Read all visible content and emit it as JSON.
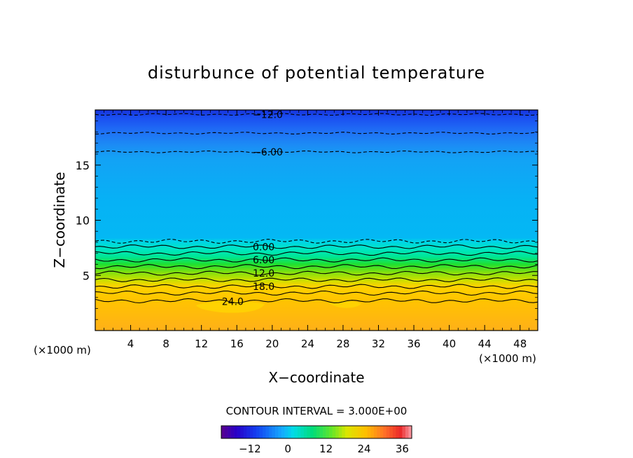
{
  "chart_data": {
    "type": "contour",
    "title": "disturbunce of potential temperature",
    "xlabel": "X−coordinate",
    "ylabel": "Z−coordinate",
    "x_unit_left": "(×1000 m)",
    "x_unit_right": "(×1000 m)",
    "xlim": [
      0,
      50
    ],
    "ylim": [
      0,
      20
    ],
    "x_ticks": [
      4,
      8,
      12,
      16,
      20,
      24,
      28,
      32,
      36,
      40,
      44,
      48
    ],
    "y_ticks": [
      5,
      10,
      15
    ],
    "contour_interval_label": "CONTOUR INTERVAL = 3.000E+00",
    "contour_lines": [
      {
        "level": -12,
        "label": "−12.0",
        "z": 19.6,
        "style": "dashed"
      },
      {
        "level": -9,
        "label": "",
        "z": 17.9,
        "style": "dashed"
      },
      {
        "level": -6,
        "label": "−6.00",
        "z": 16.2,
        "style": "dashed"
      },
      {
        "level": -3,
        "label": "",
        "z": 8.1,
        "style": "dashed"
      },
      {
        "level": 0,
        "label": "0.00",
        "z": 7.6,
        "style": "solid"
      },
      {
        "level": 3,
        "label": "",
        "z": 7.0,
        "style": "solid"
      },
      {
        "level": 6,
        "label": "6.00",
        "z": 6.4,
        "style": "solid"
      },
      {
        "level": 9,
        "label": "",
        "z": 5.8,
        "style": "solid"
      },
      {
        "level": 12,
        "label": "12.0",
        "z": 5.2,
        "style": "solid"
      },
      {
        "level": 15,
        "label": "",
        "z": 4.6,
        "style": "solid"
      },
      {
        "level": 18,
        "label": "18.0",
        "z": 4.0,
        "style": "solid"
      },
      {
        "level": 21,
        "label": "",
        "z": 3.4,
        "style": "solid"
      },
      {
        "level": 24,
        "label": "24.0",
        "z": 2.7,
        "style": "solid"
      }
    ],
    "colorbar": {
      "min": -21,
      "max": 39,
      "ticks": [
        -12,
        0,
        12,
        24,
        36
      ]
    }
  }
}
